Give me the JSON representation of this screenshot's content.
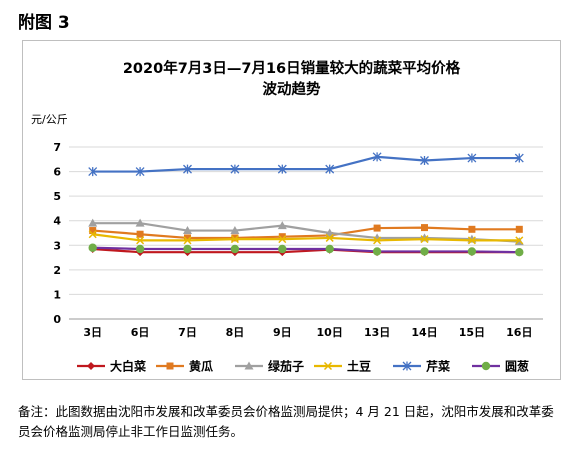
{
  "figure_label": "附图 3",
  "note": "备注：此图数据由沈阳市发展和改革委员会价格监测局提供；4 月 21 日起，沈阳市发展和改革委员会价格监测局停止非工作日监测任务。",
  "chart_data": {
    "type": "line",
    "title": "2020年7月3日—7月16日销量较大的蔬菜平均价格",
    "subtitle": "波动趋势",
    "ylabel": "元/公斤",
    "xlabel": "",
    "ylim": [
      0,
      7
    ],
    "yticks": [
      "0",
      "1",
      "2",
      "3",
      "4",
      "5",
      "6",
      "7"
    ],
    "categories": [
      "3日",
      "6日",
      "7日",
      "8日",
      "9日",
      "10日",
      "13日",
      "14日",
      "15日",
      "16日"
    ],
    "grid": true,
    "legend_position": "bottom",
    "series": [
      {
        "name": "大白菜",
        "color": "#c0181e",
        "marker": "diamond",
        "values": [
          2.85,
          2.72,
          2.72,
          2.72,
          2.72,
          2.82,
          2.72,
          2.72,
          2.72,
          2.72
        ]
      },
      {
        "name": "黄瓜",
        "color": "#e07a20",
        "marker": "square",
        "values": [
          3.6,
          3.45,
          3.3,
          3.3,
          3.35,
          3.4,
          3.7,
          3.72,
          3.65,
          3.65
        ]
      },
      {
        "name": "绿茄子",
        "color": "#a0a0a0",
        "marker": "triangle",
        "values": [
          3.9,
          3.9,
          3.6,
          3.6,
          3.8,
          3.5,
          3.3,
          3.3,
          3.25,
          3.15
        ]
      },
      {
        "name": "土豆",
        "color": "#e8b800",
        "marker": "x",
        "values": [
          3.45,
          3.2,
          3.2,
          3.25,
          3.25,
          3.3,
          3.2,
          3.25,
          3.2,
          3.2
        ]
      },
      {
        "name": "芹菜",
        "color": "#4472c4",
        "marker": "star",
        "values": [
          6.0,
          6.0,
          6.1,
          6.1,
          6.1,
          6.1,
          6.6,
          6.45,
          6.55,
          6.55
        ]
      },
      {
        "name": "圆葱",
        "color": "#7030a0",
        "marker": "circle",
        "marker_color": "#70ad47",
        "values": [
          2.9,
          2.85,
          2.85,
          2.85,
          2.85,
          2.85,
          2.75,
          2.75,
          2.75,
          2.72
        ]
      }
    ]
  }
}
